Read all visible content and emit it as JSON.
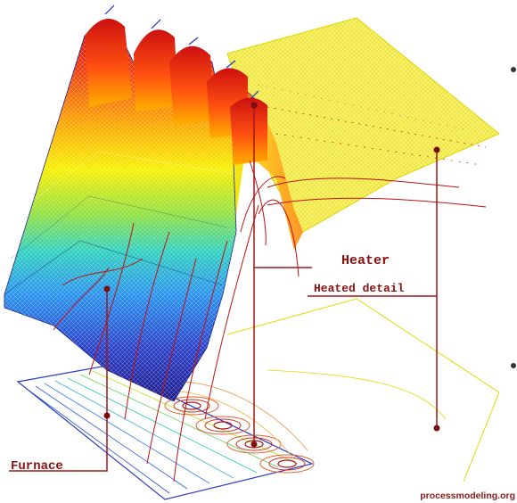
{
  "labels": {
    "heater": "Heater",
    "heated_detail": "Heated detail",
    "furnace": "Furnace"
  },
  "credit": "processmodeling.org",
  "colors": {
    "label_text": "#8b1010",
    "callout_line": "#a01818",
    "marker": "#7a0d0d",
    "background": "#ffffff"
  }
}
